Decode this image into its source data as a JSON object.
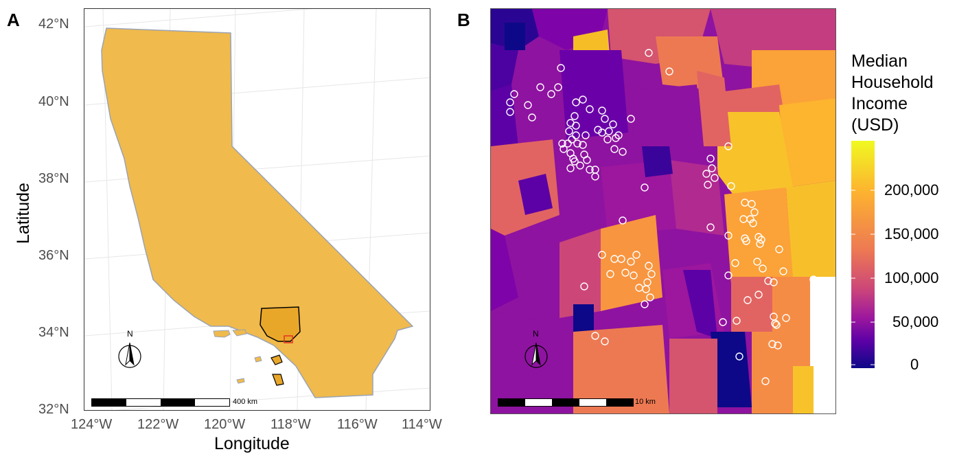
{
  "panel_a": {
    "letter": "A",
    "y_ticks": [
      "42°N",
      "40°N",
      "38°N",
      "36°N",
      "34°N",
      "32°N"
    ],
    "x_ticks": [
      "124°W",
      "122°W",
      "120°W",
      "118°W",
      "116°W",
      "114°W"
    ],
    "x_title": "Longitude",
    "y_title": "Latitude",
    "scale_label": "400 km",
    "north_label": "N",
    "colors": {
      "state_fill": "#F0BA4C",
      "county_fill": "#E9A72A",
      "inset_box": "#E63223",
      "border": "#9aa3b3"
    }
  },
  "panel_b": {
    "letter": "B",
    "scale_label": "10 km",
    "north_label": "N",
    "marker_color": "#ffffff"
  },
  "legend": {
    "title_lines": [
      "Median",
      "Household",
      "Income",
      "(USD)"
    ],
    "labels": [
      "200,000",
      "150,000",
      "100,000",
      "50,000",
      "0"
    ],
    "colors": [
      "#F0F921",
      "#FDB42F",
      "#ED7953",
      "#CC4778",
      "#9C179E",
      "#5C01A6",
      "#0D0887"
    ]
  }
}
